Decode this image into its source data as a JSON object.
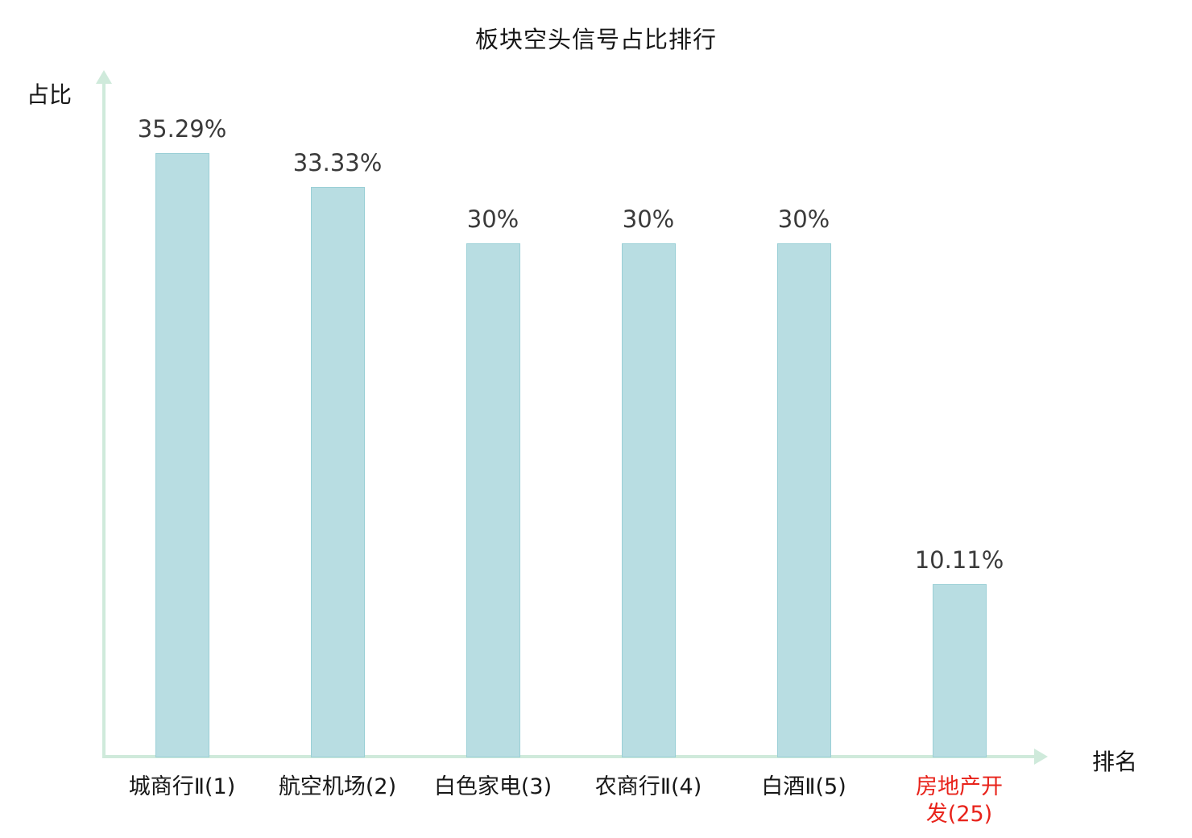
{
  "chart_data": {
    "type": "bar",
    "title": "板块空头信号占比排行",
    "ylabel": "占比",
    "xlabel": "排名",
    "categories": [
      "城商行Ⅱ(1)",
      "航空机场(2)",
      "白色家电(3)",
      "农商行Ⅱ(4)",
      "白酒Ⅱ(5)",
      "房地产开发(25)"
    ],
    "category_lines": [
      [
        "城商行Ⅱ(1)"
      ],
      [
        "航空机场(2)"
      ],
      [
        "白色家电(3)"
      ],
      [
        "农商行Ⅱ(4)"
      ],
      [
        "白酒Ⅱ(5)"
      ],
      [
        "房地产开",
        "发(25)"
      ]
    ],
    "values": [
      35.29,
      33.33,
      30,
      30,
      30,
      10.11
    ],
    "value_labels": [
      "35.29%",
      "33.33%",
      "30%",
      "30%",
      "30%",
      "10.11%"
    ],
    "highlight_index": 5,
    "ylim": [
      0,
      37
    ],
    "grid": false,
    "legend": "none",
    "colors": {
      "bar_fill": "#b8dde2",
      "bar_border": "#9acfd6",
      "axis": "#cfeadb",
      "text": "#3a3a3a",
      "category_text": "#171717",
      "highlight_text": "#e8231b"
    }
  }
}
